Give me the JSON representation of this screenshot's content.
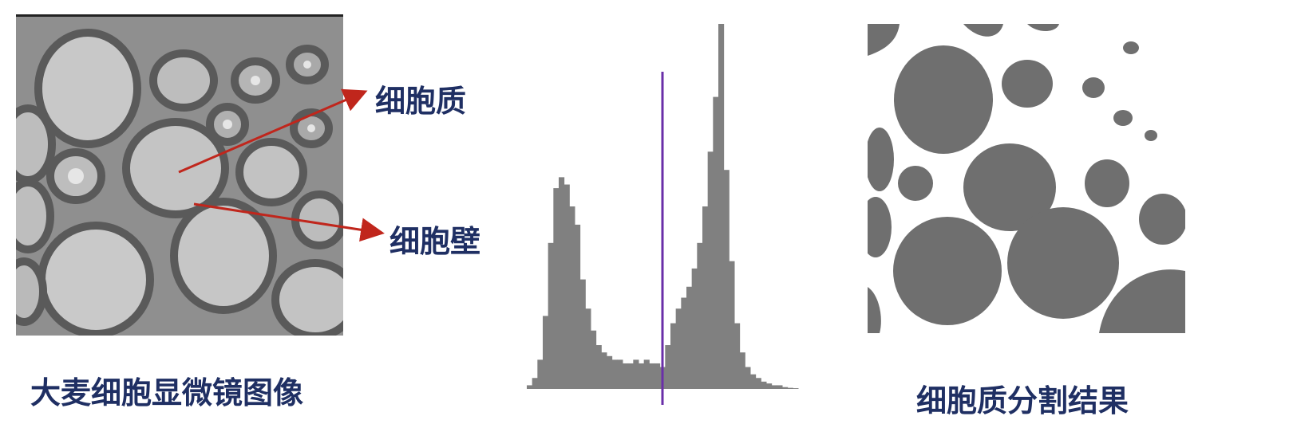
{
  "labels": {
    "cytoplasm": "细胞质",
    "cell_wall": "细胞壁",
    "left_caption": "大麦细胞显微镜图像",
    "right_caption": "细胞质分割结果"
  },
  "colors": {
    "label_text": "#1f2f63",
    "arrow": "#c0261c",
    "threshold_line": "#6a2fa8",
    "histogram_fill": "#808080",
    "segment_fill": "#6f6f6f"
  },
  "chart_data": {
    "type": "bar",
    "title": "",
    "xlabel": "",
    "ylabel": "",
    "grid": false,
    "legend": "none",
    "threshold_x": 0.5,
    "x": [
      0.0,
      0.02,
      0.04,
      0.06,
      0.08,
      0.1,
      0.12,
      0.14,
      0.16,
      0.18,
      0.2,
      0.22,
      0.24,
      0.26,
      0.28,
      0.3,
      0.32,
      0.34,
      0.36,
      0.38,
      0.4,
      0.42,
      0.44,
      0.46,
      0.48,
      0.5,
      0.52,
      0.54,
      0.56,
      0.58,
      0.6,
      0.62,
      0.64,
      0.66,
      0.68,
      0.7,
      0.72,
      0.74,
      0.76,
      0.78,
      0.8,
      0.82,
      0.84,
      0.86,
      0.88,
      0.9,
      0.92,
      0.94,
      0.96,
      0.98,
      1.0
    ],
    "values": [
      0.01,
      0.03,
      0.08,
      0.2,
      0.4,
      0.55,
      0.58,
      0.56,
      0.5,
      0.45,
      0.3,
      0.22,
      0.16,
      0.12,
      0.1,
      0.09,
      0.08,
      0.08,
      0.07,
      0.07,
      0.08,
      0.07,
      0.08,
      0.07,
      0.07,
      0.06,
      0.12,
      0.18,
      0.22,
      0.25,
      0.28,
      0.33,
      0.4,
      0.5,
      0.65,
      0.8,
      1.0,
      0.6,
      0.35,
      0.18,
      0.1,
      0.06,
      0.04,
      0.03,
      0.02,
      0.015,
      0.01,
      0.01,
      0.005,
      0.003,
      0.002
    ],
    "ylim": [
      0,
      1
    ]
  }
}
